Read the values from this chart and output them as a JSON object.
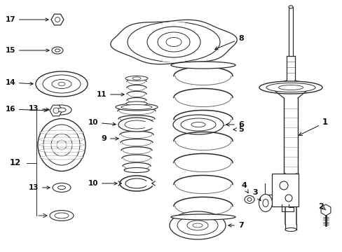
{
  "bg_color": "#ffffff",
  "line_color": "#2a2a2a",
  "text_color": "#111111",
  "figsize": [
    4.89,
    3.6
  ],
  "dpi": 100,
  "xlim": [
    0,
    489
  ],
  "ylim": [
    0,
    360
  ]
}
